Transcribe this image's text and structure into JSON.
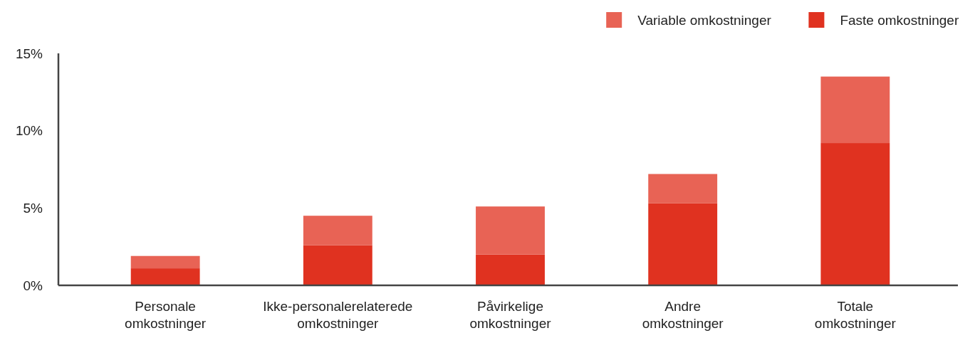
{
  "chart_data": {
    "type": "bar",
    "stacked": true,
    "categories": [
      "Personale omkostninger",
      "Ikke-personalerelaterede omkostninger",
      "Påvirkelige omkostninger",
      "Andre omkostninger",
      "Totale omkostninger"
    ],
    "series": [
      {
        "name": "Faste omkostninger",
        "color": "#e03220",
        "values": [
          1.1,
          2.6,
          2.0,
          5.3,
          9.2
        ]
      },
      {
        "name": "Variable omkostninger",
        "color": "#e86355",
        "values": [
          0.8,
          1.9,
          3.1,
          1.9,
          4.3
        ]
      }
    ],
    "ylim": [
      0,
      15
    ],
    "yticks": [
      {
        "value": 0,
        "label": "0%"
      },
      {
        "value": 5,
        "label": "5%"
      },
      {
        "value": 10,
        "label": "10%"
      },
      {
        "value": 15,
        "label": "15%"
      }
    ],
    "legend": "top right",
    "grid": false
  }
}
